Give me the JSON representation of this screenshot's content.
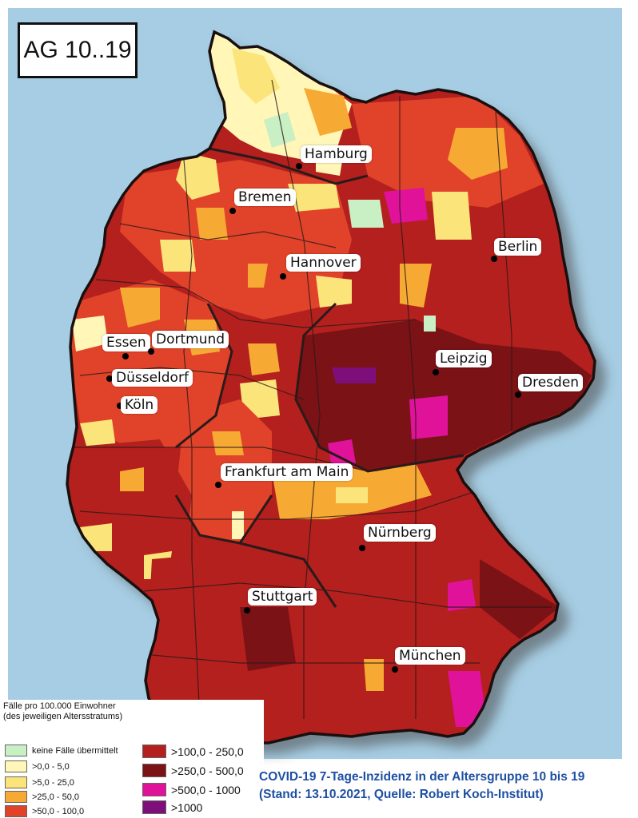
{
  "map_label": "AG 10..19",
  "colors": {
    "sea": "#a6cde3",
    "border": "#2a1a1a",
    "no_cases": "#c9efc5",
    "c0_5": "#fff6b8",
    "c5_25": "#fbe57a",
    "c25_50": "#f7aa33",
    "c50_100": "#e0432a",
    "c100_250": "#b3201d",
    "c250_500": "#7a1216",
    "c500_1000": "#e0129a",
    "c1000": "#7e0f7a"
  },
  "cities": [
    {
      "name": "Hamburg"
    },
    {
      "name": "Bremen"
    },
    {
      "name": "Berlin"
    },
    {
      "name": "Hannover"
    },
    {
      "name": "Essen"
    },
    {
      "name": "Dortmund"
    },
    {
      "name": "Düsseldorf"
    },
    {
      "name": "Köln"
    },
    {
      "name": "Leipzig"
    },
    {
      "name": "Dresden"
    },
    {
      "name": "Frankfurt am Main"
    },
    {
      "name": "Nürnberg"
    },
    {
      "name": "Stuttgart"
    },
    {
      "name": "München"
    }
  ],
  "legend": {
    "title_line1": "Fälle pro 100.000 Einwohner",
    "title_line2": "(des jeweiligen Altersstratums)",
    "items": [
      {
        "label": "keine Fälle übermittelt",
        "color": "#c9efc5"
      },
      {
        "label": ">0,0 - 5,0",
        "color": "#fff6b8"
      },
      {
        "label": ">5,0 - 25,0",
        "color": "#fbe57a"
      },
      {
        "label": ">25,0 - 50,0",
        "color": "#f7aa33"
      },
      {
        "label": ">50,0 - 100,0",
        "color": "#e0432a"
      },
      {
        "label": ">100,0 - 250,0",
        "color": "#b3201d"
      },
      {
        "label": ">250,0 - 500,0",
        "color": "#7a1216"
      },
      {
        "label": ">500,0 - 1000",
        "color": "#e0129a"
      },
      {
        "label": ">1000",
        "color": "#7e0f7a"
      }
    ]
  },
  "footer": {
    "line1": "COVID-19 7-Tage-Inzidenz in der Altersgruppe 10 bis 19",
    "line2": "(Stand: 13.10.2021, Quelle: Robert Koch-Institut)"
  }
}
